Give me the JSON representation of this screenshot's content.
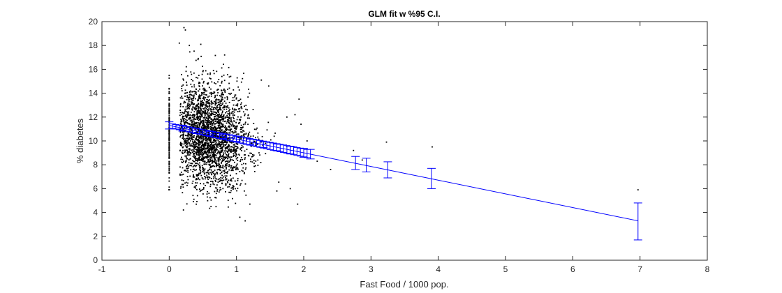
{
  "chart_data": {
    "type": "scatter",
    "title": "GLM fit w %95 C.I.",
    "xlabel": "Fast Food / 1000 pop.",
    "ylabel": "% diabetes",
    "xlim": [
      -1,
      8
    ],
    "ylim": [
      0,
      20
    ],
    "x_ticks": [
      -1,
      0,
      1,
      2,
      3,
      4,
      5,
      6,
      7,
      8
    ],
    "y_ticks": [
      0,
      2,
      4,
      6,
      8,
      10,
      12,
      14,
      16,
      18,
      20
    ],
    "grid": false,
    "box": true,
    "colors": {
      "points": "#000000",
      "fit": "#0000ff",
      "axes": "#262626"
    },
    "fit_line": {
      "x": [
        0,
        6.97
      ],
      "y": [
        11.3,
        3.3
      ]
    },
    "error_bars": [
      {
        "x": 0.0,
        "y": 11.3,
        "lower": 11.0,
        "upper": 11.6
      },
      {
        "x": 0.2,
        "y": 11.07,
        "lower": 10.82,
        "upper": 11.32
      },
      {
        "x": 0.4,
        "y": 10.84,
        "lower": 10.62,
        "upper": 11.06
      },
      {
        "x": 0.6,
        "y": 10.61,
        "lower": 10.42,
        "upper": 10.8
      },
      {
        "x": 0.8,
        "y": 10.38,
        "lower": 10.2,
        "upper": 10.56
      },
      {
        "x": 1.0,
        "y": 10.15,
        "lower": 9.96,
        "upper": 10.34
      },
      {
        "x": 1.2,
        "y": 9.92,
        "lower": 9.71,
        "upper": 10.13
      },
      {
        "x": 1.4,
        "y": 9.69,
        "lower": 9.45,
        "upper": 9.93
      },
      {
        "x": 1.6,
        "y": 9.46,
        "lower": 9.18,
        "upper": 9.74
      },
      {
        "x": 1.8,
        "y": 9.23,
        "lower": 8.91,
        "upper": 9.55
      },
      {
        "x": 2.0,
        "y": 9.0,
        "lower": 8.63,
        "upper": 9.37
      },
      {
        "x": 2.1,
        "y": 8.89,
        "lower": 8.49,
        "upper": 9.29
      },
      {
        "x": 2.77,
        "y": 8.12,
        "lower": 7.6,
        "upper": 8.7
      },
      {
        "x": 2.93,
        "y": 7.94,
        "lower": 7.4,
        "upper": 8.55
      },
      {
        "x": 3.25,
        "y": 7.57,
        "lower": 6.9,
        "upper": 8.25
      },
      {
        "x": 3.9,
        "y": 6.82,
        "lower": 6.0,
        "upper": 7.7
      },
      {
        "x": 6.97,
        "y": 3.3,
        "lower": 1.7,
        "upper": 4.8
      }
    ],
    "scatter_points": {
      "n": 2700,
      "x_mean": 0.6,
      "x_sd": 0.3,
      "y_mean": 10.4,
      "y_sd": 2.2,
      "zero_column": {
        "x": 0,
        "n": 140,
        "y_range": [
          5.9,
          17.9
        ]
      },
      "outliers": [
        [
          0.22,
          19.5
        ],
        [
          0.24,
          19.3
        ],
        [
          0.15,
          18.2
        ],
        [
          0.3,
          18.0
        ],
        [
          0.47,
          18.1
        ],
        [
          1.37,
          15.1
        ],
        [
          1.48,
          14.6
        ],
        [
          1.2,
          4.7
        ],
        [
          1.13,
          3.3
        ],
        [
          1.05,
          3.6
        ],
        [
          1.91,
          4.7
        ],
        [
          1.93,
          13.5
        ],
        [
          1.87,
          12.2
        ],
        [
          1.96,
          11.4
        ],
        [
          1.75,
          12.0
        ],
        [
          2.74,
          9.2
        ],
        [
          2.87,
          8.4
        ],
        [
          3.23,
          9.9
        ],
        [
          3.91,
          9.5
        ],
        [
          6.97,
          5.9
        ],
        [
          2.4,
          7.6
        ],
        [
          2.2,
          8.3
        ],
        [
          2.05,
          10.0
        ],
        [
          1.8,
          6.0
        ],
        [
          1.6,
          5.8
        ]
      ]
    }
  }
}
